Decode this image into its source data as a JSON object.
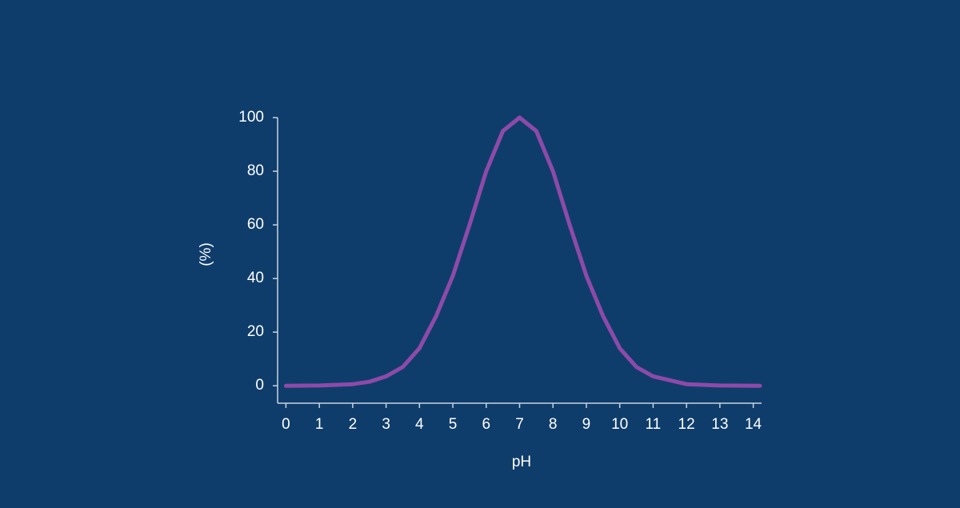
{
  "chart_data": {
    "type": "line",
    "x_label": "pH",
    "y_label": "(%)",
    "x": [
      0,
      1,
      2,
      2.5,
      3,
      3.5,
      4,
      4.5,
      5,
      5.5,
      6,
      6.5,
      7,
      7.5,
      8,
      8.5,
      9,
      9.5,
      10,
      10.5,
      11,
      12,
      13,
      14.2
    ],
    "series": [
      {
        "color": "#8e4aa8",
        "values": [
          0,
          0.1,
          0.6,
          1.5,
          3.5,
          7,
          14,
          26,
          41,
          60,
          80,
          95,
          100,
          95,
          80,
          60,
          41,
          26,
          14,
          7,
          3.5,
          0.6,
          0.1,
          0
        ]
      }
    ],
    "xlim": [
      -0.25,
      14.25
    ],
    "ylim": [
      -6.5,
      100
    ],
    "xticks": [
      0,
      1,
      2,
      3,
      4,
      5,
      6,
      7,
      8,
      9,
      10,
      11,
      12,
      13,
      14
    ],
    "yticks": [
      0,
      20,
      40,
      60,
      80,
      100
    ]
  }
}
